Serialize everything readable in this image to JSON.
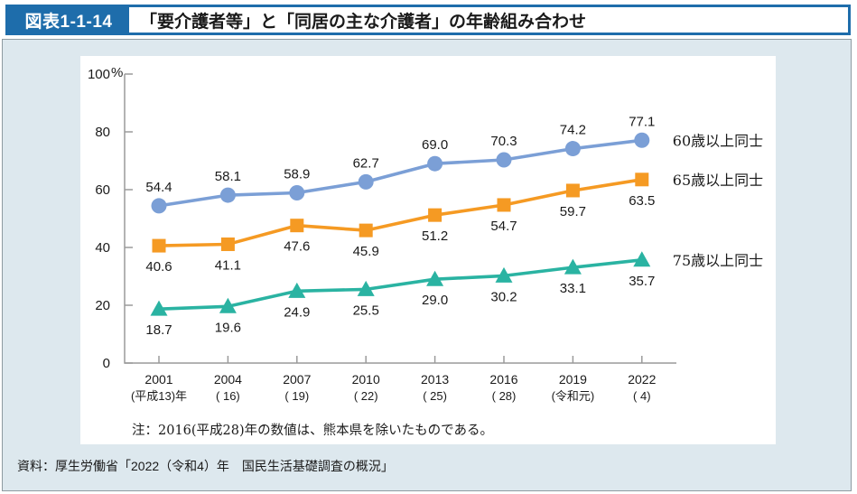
{
  "header": {
    "badge": "図表1-1-14",
    "title": "「要介護者等」と「同居の主な介護者」の年齢組み合わせ"
  },
  "note": "注：2016(平成28)年の数値は、熊本県を除いたものである。",
  "source": "資料：厚生労働省「2022（令和4）年　国民生活基礎調査の概況」",
  "colors": {
    "header_blue": "#1e6dab",
    "panel_bg": "#dde8ee",
    "panel_border": "#8e9ba1",
    "axis_gray": "#9a9a9a",
    "text_black": "#1a1a1a"
  },
  "chart_data": {
    "type": "line",
    "title": "「要介護者等」と「同居の主な介護者」の年齢組み合わせ",
    "unit_label": "%",
    "yticks": [
      0,
      20,
      40,
      60,
      80,
      100
    ],
    "ylim": [
      0,
      100
    ],
    "grid": false,
    "legend_position": "right-outside",
    "categories": [
      {
        "year": "2001",
        "era": "(平成13)年"
      },
      {
        "year": "2004",
        "era": "( 16)"
      },
      {
        "year": "2007",
        "era": "( 19)"
      },
      {
        "year": "2010",
        "era": "( 22)"
      },
      {
        "year": "2013",
        "era": "( 25)"
      },
      {
        "year": "2016",
        "era": "( 28)"
      },
      {
        "year": "2019",
        "era": "(令和元)"
      },
      {
        "year": "2022",
        "era": "(  4)"
      }
    ],
    "series": [
      {
        "name": "60歳以上同士",
        "color": "#7b9fd6",
        "marker": "circle",
        "label_position": "above",
        "values": [
          54.4,
          58.1,
          58.9,
          62.7,
          69.0,
          70.3,
          74.2,
          77.1
        ]
      },
      {
        "name": "65歳以上同士",
        "color": "#f59a23",
        "marker": "square",
        "label_position": "below",
        "values": [
          40.6,
          41.1,
          47.6,
          45.9,
          51.2,
          54.7,
          59.7,
          63.5
        ]
      },
      {
        "name": "75歳以上同士",
        "color": "#2ab3a2",
        "marker": "triangle",
        "label_position": "below",
        "values": [
          18.7,
          19.6,
          24.9,
          25.5,
          29.0,
          30.2,
          33.1,
          35.7
        ]
      }
    ]
  }
}
